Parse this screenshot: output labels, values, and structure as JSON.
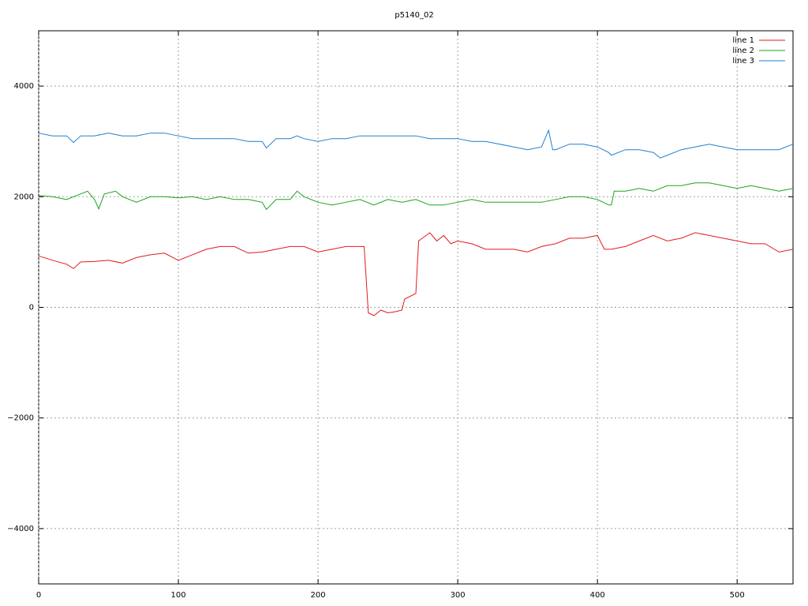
{
  "chart_data": {
    "type": "line",
    "title": "p5140_02",
    "xlim": [
      0,
      540
    ],
    "xticks": [
      0,
      100,
      200,
      300,
      400,
      500
    ],
    "ylim": [
      -5000,
      5000
    ],
    "yticks": [
      {
        "value": -4000,
        "label": "−4000"
      },
      {
        "value": -2000,
        "label": "−2000"
      },
      0,
      2000,
      4000
    ],
    "grid": true,
    "legend": "top-right",
    "series": [
      {
        "name": "line 1",
        "color": "#e41a1c",
        "x": [
          0,
          10,
          20,
          25,
          30,
          40,
          50,
          60,
          70,
          80,
          90,
          100,
          110,
          120,
          130,
          140,
          150,
          160,
          170,
          180,
          190,
          200,
          210,
          220,
          230,
          233,
          236,
          240,
          245,
          250,
          255,
          260,
          262,
          270,
          272,
          280,
          285,
          290,
          295,
          300,
          310,
          320,
          330,
          340,
          350,
          360,
          370,
          380,
          390,
          400,
          405,
          410,
          420,
          430,
          440,
          450,
          460,
          470,
          480,
          490,
          500,
          510,
          520,
          530,
          540
        ],
        "values": [
          930,
          850,
          780,
          700,
          820,
          830,
          850,
          800,
          900,
          950,
          980,
          850,
          950,
          1050,
          1100,
          1100,
          980,
          1000,
          1050,
          1100,
          1100,
          1000,
          1050,
          1100,
          1100,
          1100,
          -100,
          -150,
          -50,
          -100,
          -80,
          -50,
          150,
          250,
          1200,
          1350,
          1200,
          1300,
          1150,
          1200,
          1150,
          1050,
          1050,
          1050,
          1000,
          1100,
          1150,
          1250,
          1250,
          1300,
          1050,
          1050,
          1100,
          1200,
          1300,
          1200,
          1250,
          1350,
          1300,
          1250,
          1200,
          1150,
          1150,
          1000,
          1050
        ]
      },
      {
        "name": "line 2",
        "color": "#1aa51a",
        "x": [
          0,
          10,
          20,
          30,
          35,
          40,
          43,
          47,
          55,
          60,
          70,
          80,
          90,
          100,
          110,
          120,
          130,
          140,
          150,
          160,
          163,
          170,
          180,
          185,
          190,
          200,
          210,
          220,
          230,
          240,
          250,
          260,
          270,
          280,
          290,
          300,
          310,
          320,
          330,
          340,
          350,
          360,
          370,
          380,
          390,
          400,
          408,
          410,
          412,
          420,
          430,
          440,
          450,
          460,
          470,
          480,
          490,
          500,
          510,
          520,
          530,
          540
        ],
        "values": [
          2020,
          2000,
          1950,
          2050,
          2100,
          1950,
          1780,
          2050,
          2100,
          2000,
          1900,
          2000,
          2000,
          1980,
          2000,
          1950,
          2000,
          1950,
          1950,
          1900,
          1770,
          1950,
          1950,
          2100,
          2000,
          1900,
          1850,
          1900,
          1950,
          1850,
          1950,
          1900,
          1950,
          1850,
          1850,
          1900,
          1950,
          1900,
          1900,
          1900,
          1900,
          1900,
          1950,
          2000,
          2000,
          1950,
          1850,
          1850,
          2100,
          2100,
          2150,
          2100,
          2200,
          2200,
          2250,
          2250,
          2200,
          2150,
          2200,
          2150,
          2100,
          2150
        ]
      },
      {
        "name": "line 3",
        "color": "#1f7fd0",
        "x": [
          0,
          10,
          20,
          25,
          30,
          40,
          50,
          60,
          70,
          80,
          90,
          100,
          110,
          120,
          130,
          140,
          150,
          160,
          163,
          170,
          180,
          185,
          190,
          200,
          210,
          220,
          230,
          240,
          250,
          260,
          270,
          280,
          290,
          300,
          310,
          320,
          330,
          340,
          350,
          360,
          365,
          368,
          370,
          380,
          390,
          400,
          408,
          410,
          420,
          430,
          440,
          445,
          450,
          460,
          470,
          480,
          490,
          500,
          510,
          520,
          530,
          540
        ],
        "values": [
          3150,
          3100,
          3100,
          2980,
          3100,
          3100,
          3150,
          3100,
          3100,
          3150,
          3150,
          3100,
          3050,
          3050,
          3050,
          3050,
          3000,
          3000,
          2880,
          3050,
          3050,
          3100,
          3050,
          3000,
          3050,
          3050,
          3100,
          3100,
          3100,
          3100,
          3100,
          3050,
          3050,
          3050,
          3000,
          3000,
          2950,
          2900,
          2850,
          2900,
          3200,
          2850,
          2850,
          2950,
          2950,
          2900,
          2800,
          2750,
          2850,
          2850,
          2800,
          2700,
          2750,
          2850,
          2900,
          2950,
          2900,
          2850,
          2850,
          2850,
          2850,
          2950
        ]
      }
    ]
  }
}
